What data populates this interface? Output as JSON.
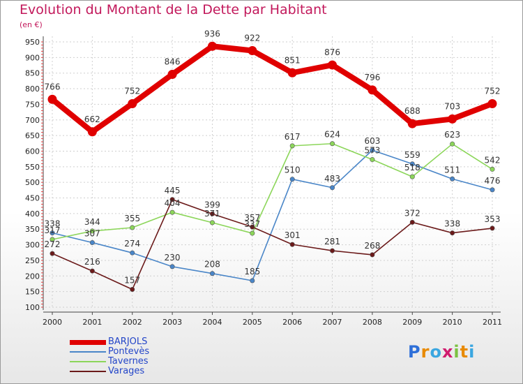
{
  "chart_data": {
    "type": "line",
    "title": "Evolution du Montant de la Dette par Habitant",
    "subtitle": "(en €)",
    "x": [
      "2000",
      "2001",
      "2002",
      "2003",
      "2004",
      "2005",
      "2006",
      "2007",
      "2008",
      "2009",
      "2010",
      "2011"
    ],
    "ylim": [
      100,
      950
    ],
    "yticks": [
      100,
      150,
      200,
      250,
      300,
      350,
      400,
      450,
      500,
      550,
      600,
      650,
      700,
      750,
      800,
      850,
      900,
      950
    ],
    "grid": true,
    "legend_position": "bottom-left",
    "series": [
      {
        "name": "BARJOLS",
        "color": "#e00000",
        "values": [
          766,
          662,
          752,
          846,
          936,
          922,
          851,
          876,
          796,
          688,
          703,
          752
        ]
      },
      {
        "name": "Pontevès",
        "color": "#4a86c8",
        "values": [
          338,
          307,
          274,
          230,
          208,
          185,
          510,
          483,
          603,
          559,
          511,
          476
        ]
      },
      {
        "name": "Tavernes",
        "color": "#8cd65a",
        "values": [
          317,
          344,
          355,
          404,
          371,
          337,
          617,
          624,
          573,
          518,
          623,
          542
        ]
      },
      {
        "name": "Varages",
        "color": "#6b1a1a",
        "values": [
          272,
          216,
          157,
          445,
          399,
          357,
          301,
          281,
          268,
          372,
          338,
          353
        ]
      }
    ],
    "data_labels": [
      {
        "series": 1,
        "index": 0,
        "text": "338"
      },
      {
        "series": 1,
        "index": 1,
        "text": "307"
      },
      {
        "series": 1,
        "index": 2,
        "text": "274"
      },
      {
        "series": 1,
        "index": 3,
        "text": "230"
      },
      {
        "series": 1,
        "index": 4,
        "text": "208"
      },
      {
        "series": 1,
        "index": 5,
        "text": "185"
      },
      {
        "series": 1,
        "index": 6,
        "text": "510"
      },
      {
        "series": 1,
        "index": 7,
        "text": "483"
      },
      {
        "series": 1,
        "index": 8,
        "text": "603"
      },
      {
        "series": 1,
        "index": 9,
        "text": "559"
      },
      {
        "series": 1,
        "index": 10,
        "text": "511"
      },
      {
        "series": 1,
        "index": 11,
        "text": "476"
      },
      {
        "series": 2,
        "index": 0,
        "text": "317"
      },
      {
        "series": 2,
        "index": 1,
        "text": "344"
      },
      {
        "series": 2,
        "index": 2,
        "text": "355"
      },
      {
        "series": 2,
        "index": 3,
        "text": "404"
      },
      {
        "series": 2,
        "index": 4,
        "text": "371"
      },
      {
        "series": 2,
        "index": 5,
        "text": "337"
      },
      {
        "series": 2,
        "index": 6,
        "text": "617"
      },
      {
        "series": 2,
        "index": 7,
        "text": "624"
      },
      {
        "series": 2,
        "index": 8,
        "text": "573"
      },
      {
        "series": 2,
        "index": 9,
        "text": "518"
      },
      {
        "series": 2,
        "index": 10,
        "text": "623"
      },
      {
        "series": 2,
        "index": 11,
        "text": "542"
      },
      {
        "series": 3,
        "index": 0,
        "text": "272"
      },
      {
        "series": 3,
        "index": 1,
        "text": "216"
      },
      {
        "series": 3,
        "index": 2,
        "text": "157"
      },
      {
        "series": 3,
        "index": 3,
        "text": "445"
      },
      {
        "series": 3,
        "index": 4,
        "text": "399"
      },
      {
        "series": 3,
        "index": 5,
        "text": "357"
      },
      {
        "series": 3,
        "index": 6,
        "text": "301"
      },
      {
        "series": 3,
        "index": 7,
        "text": "281"
      },
      {
        "series": 3,
        "index": 8,
        "text": "268"
      },
      {
        "series": 3,
        "index": 9,
        "text": "372"
      },
      {
        "series": 3,
        "index": 10,
        "text": "338"
      },
      {
        "series": 3,
        "index": 11,
        "text": "353"
      },
      {
        "series": 0,
        "index": 0,
        "text": "766"
      },
      {
        "series": 0,
        "index": 1,
        "text": "662"
      },
      {
        "series": 0,
        "index": 2,
        "text": "752"
      },
      {
        "series": 0,
        "index": 3,
        "text": "846"
      },
      {
        "series": 0,
        "index": 4,
        "text": "936"
      },
      {
        "series": 0,
        "index": 5,
        "text": "922"
      },
      {
        "series": 0,
        "index": 6,
        "text": "851"
      },
      {
        "series": 0,
        "index": 7,
        "text": "876"
      },
      {
        "series": 0,
        "index": 8,
        "text": "796"
      },
      {
        "series": 0,
        "index": 9,
        "text": "688"
      },
      {
        "series": 0,
        "index": 10,
        "text": "703"
      },
      {
        "series": 0,
        "index": 11,
        "text": "752"
      }
    ]
  },
  "logo": {
    "text": "Proxiti",
    "letters": [
      "P",
      "r",
      "o",
      "x",
      "i",
      "t",
      "i"
    ],
    "colors": [
      "#2e6fd8",
      "#e88a00",
      "#3aa6e0",
      "#d01b6e",
      "#7cc242",
      "#e88a00",
      "#3aa6e0"
    ]
  }
}
